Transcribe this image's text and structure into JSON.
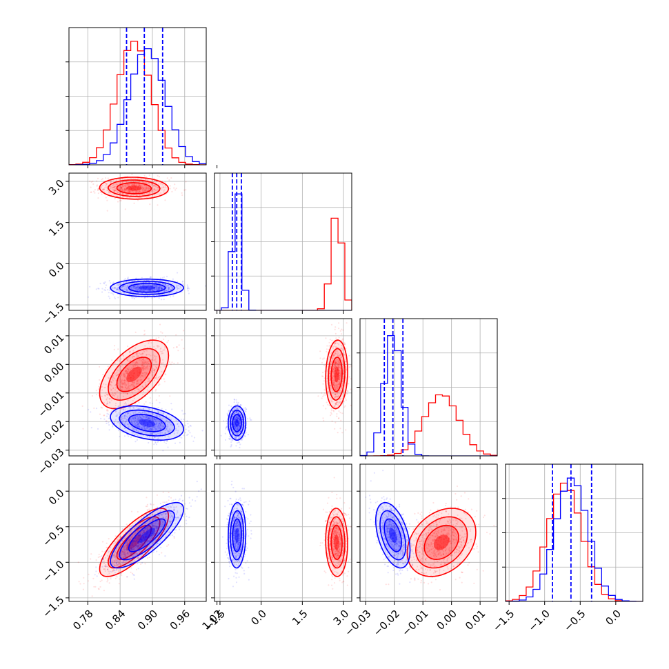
{
  "chart_data": {
    "type": "corner",
    "title": "",
    "grid": true,
    "parameters": [
      {
        "ticks": [
          0.78,
          0.84,
          0.9,
          0.96,
          1.02
        ],
        "tick_labels": [
          "0.78",
          "0.84",
          "0.90",
          "0.96",
          "1.02"
        ],
        "range": [
          0.745,
          1.0
        ]
      },
      {
        "ticks": [
          -1.5,
          0.0,
          1.5,
          3.0
        ],
        "tick_labels": [
          "−1.5",
          "0.0",
          "1.5",
          "3.0"
        ],
        "range": [
          -1.7,
          3.3
        ]
      },
      {
        "ticks": [
          -0.03,
          -0.02,
          -0.01,
          0.0,
          0.01
        ],
        "tick_labels": [
          "−0.03",
          "−0.02",
          "−0.01",
          "0.00",
          "0.01"
        ],
        "range": [
          -0.032,
          0.016
        ]
      },
      {
        "ticks": [
          -1.5,
          -1.0,
          -0.5,
          0.0
        ],
        "tick_labels": [
          "−1.5",
          "−1.0",
          "−0.5",
          "0.0"
        ],
        "range": [
          -1.55,
          0.38
        ]
      }
    ],
    "series": [
      {
        "color": "#ff0000",
        "mean": [
          0.866,
          2.75,
          -0.0035,
          -0.72
        ],
        "std": [
          0.032,
          0.2,
          0.006,
          0.24
        ],
        "corr": {
          "0-2": 0.55,
          "0-3": 0.78,
          "1-2": 0.1,
          "2-3": 0.3,
          "1-3": -0.05,
          "0-1": -0.05
        }
      },
      {
        "color": "#0000ff",
        "mean": [
          0.89,
          -0.88,
          -0.0205,
          -0.62
        ],
        "std": [
          0.034,
          0.16,
          0.003,
          0.23
        ],
        "corr": {
          "0-2": -0.35,
          "0-3": 0.8,
          "1-2": 0.0,
          "2-3": -0.45,
          "1-3": 0.05,
          "0-1": 0.0
        }
      }
    ],
    "quantiles": [
      {
        "values": [
          0.852,
          0.885,
          0.919
        ]
      },
      {
        "values": [
          -1.05,
          -0.89,
          -0.72
        ]
      },
      {
        "values": [
          -0.0235,
          -0.0205,
          -0.017
        ]
      },
      {
        "values": [
          -0.89,
          -0.63,
          -0.34
        ]
      }
    ],
    "quantile_color": "#0000ff"
  }
}
